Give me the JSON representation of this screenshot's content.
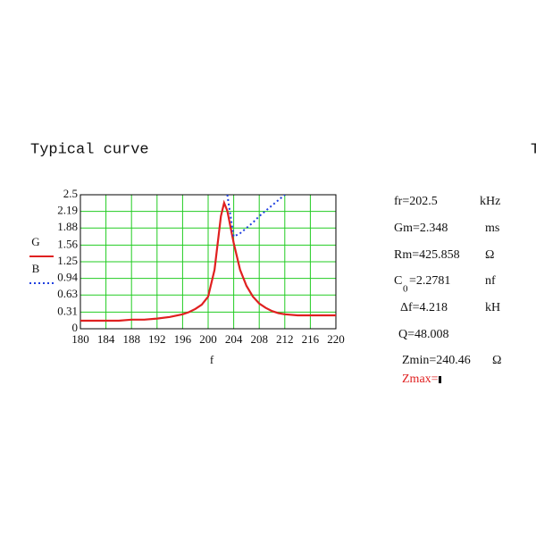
{
  "heading": "Typical curve",
  "edge_text": "T",
  "chart_data": {
    "type": "line",
    "x": [
      180,
      182,
      184,
      186,
      188,
      190,
      192,
      194,
      196,
      197,
      198,
      199,
      200,
      201,
      202,
      202.5,
      203,
      204,
      205,
      206,
      207,
      208,
      209,
      210,
      211,
      212,
      214,
      216,
      218,
      220
    ],
    "series": [
      {
        "name": "G",
        "color": "#e02020",
        "style": "solid",
        "values": [
          0.15,
          0.15,
          0.15,
          0.15,
          0.17,
          0.17,
          0.19,
          0.22,
          0.27,
          0.31,
          0.37,
          0.45,
          0.6,
          1.1,
          2.1,
          2.348,
          2.2,
          1.6,
          1.1,
          0.8,
          0.6,
          0.47,
          0.39,
          0.33,
          0.29,
          0.27,
          0.25,
          0.25,
          0.25,
          0.25
        ]
      },
      {
        "name": "B",
        "color": "#1f3fe0",
        "style": "dotted",
        "values": [
          null,
          null,
          null,
          null,
          null,
          null,
          null,
          null,
          null,
          null,
          null,
          null,
          null,
          null,
          null,
          null,
          2.5,
          1.72,
          1.78,
          1.88,
          1.98,
          2.1,
          2.2,
          2.3,
          2.4,
          2.5,
          null,
          null,
          null,
          null
        ]
      }
    ],
    "xlabel": "f",
    "xlim": [
      180,
      220
    ],
    "xticks": [
      180,
      184,
      188,
      192,
      196,
      200,
      204,
      208,
      212,
      216,
      220
    ],
    "ylim": [
      0,
      2.5
    ],
    "yticks": [
      0,
      0.31,
      0.63,
      0.94,
      1.25,
      1.56,
      1.88,
      2.19,
      2.5
    ],
    "grid": true,
    "grid_color": "#22cc22"
  },
  "params": [
    {
      "text": "fr=202.5",
      "unit": "kHz"
    },
    {
      "text": "Gm=2.348",
      "unit": "ms"
    },
    {
      "text": "Rm=425.858",
      "unit": "Ω"
    },
    {
      "text": "C",
      "sub": "0",
      "rest": "=2.2781",
      "unit": "nf"
    },
    {
      "text": "Δf=4.218",
      "unit": "kH"
    },
    {
      "text": "Q=48.008"
    },
    {
      "text": "Zmin=240.46",
      "unit": "Ω"
    },
    {
      "text": "Zmax="
    }
  ]
}
